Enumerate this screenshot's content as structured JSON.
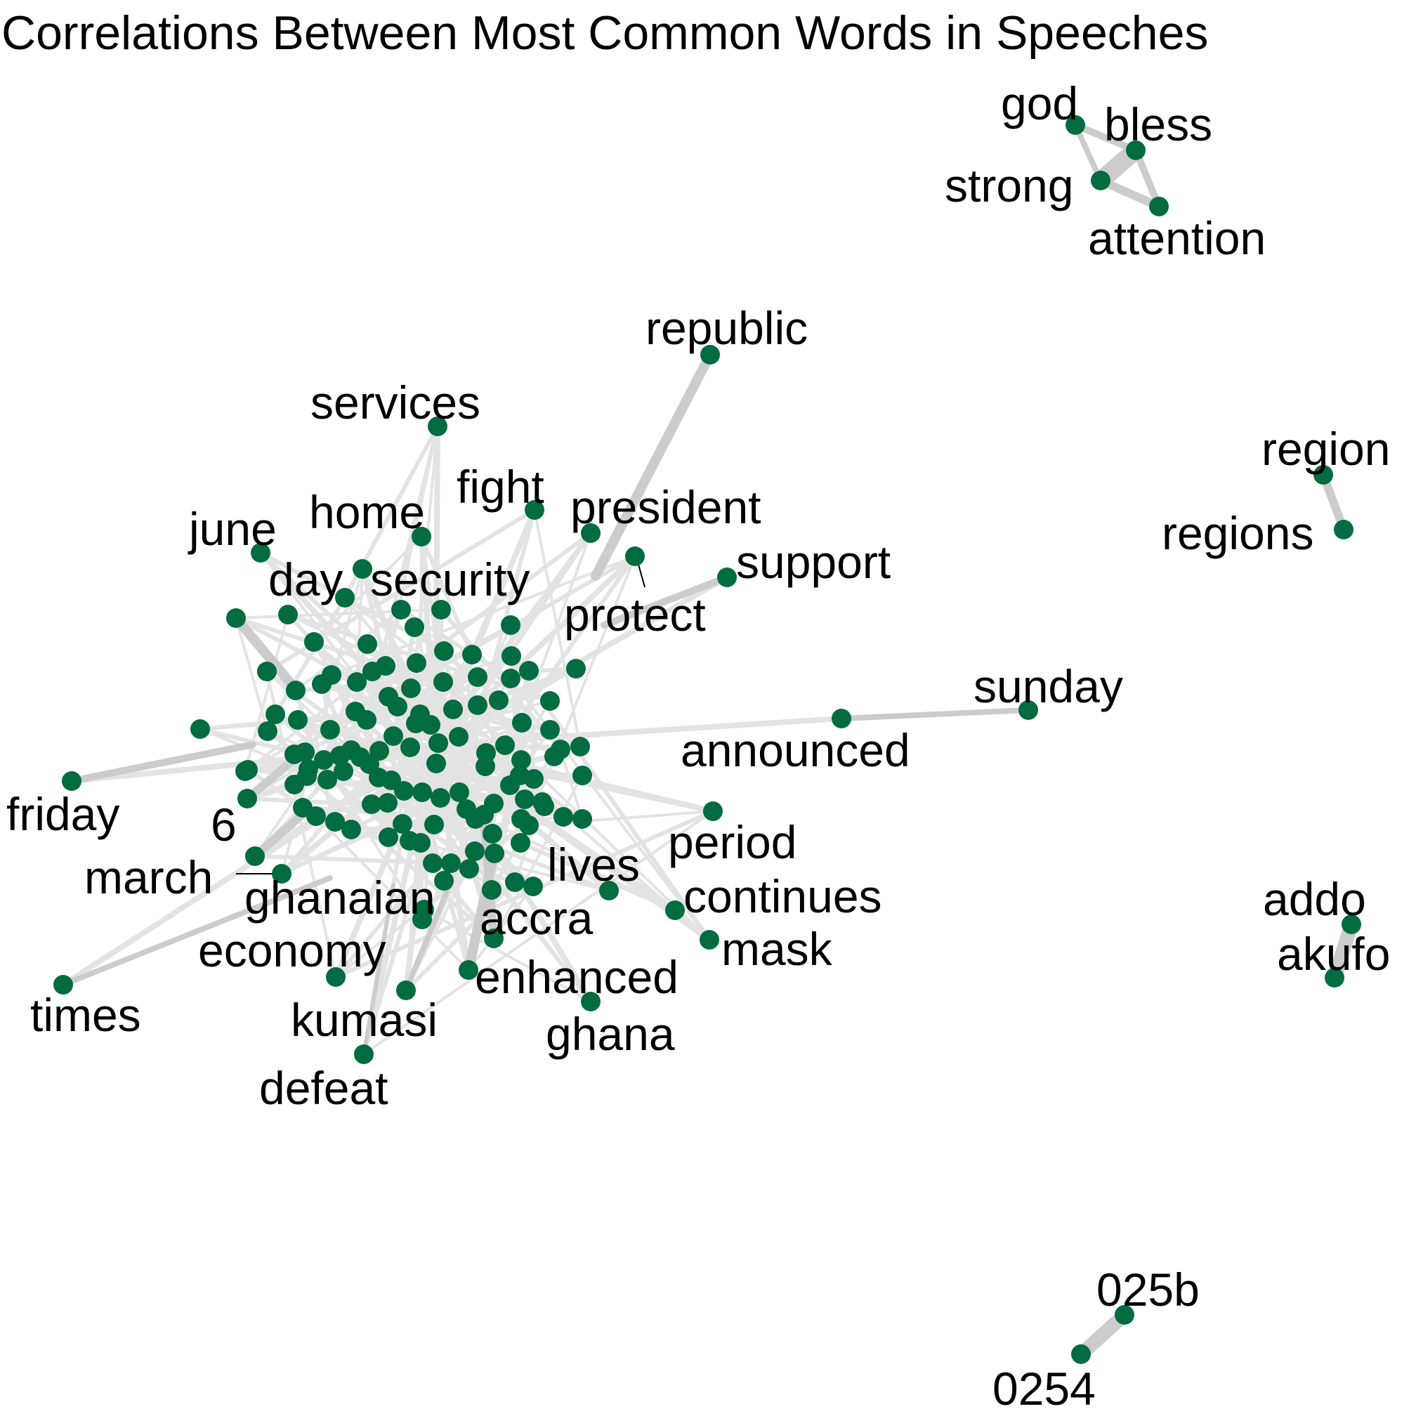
{
  "title": "Correlations Between Most Common Words in Speeches",
  "colors": {
    "node": "#006c3f",
    "edge": "#cccccc",
    "edge_light": "#e3e3e3",
    "label": "#000000"
  },
  "labels": [
    "god",
    "bless",
    "strong",
    "attention",
    "republic",
    "services",
    "fight",
    "home",
    "june",
    "president",
    "support",
    "day",
    "security",
    "protect",
    "region",
    "regions",
    "sunday",
    "announced",
    "friday",
    "6",
    "march",
    "ghanaian",
    "period",
    "lives",
    "continues",
    "accra",
    "mask",
    "economy",
    "enhanced",
    "times",
    "kumasi",
    "ghana",
    "defeat",
    "addo",
    "akufo",
    "025b",
    "0254"
  ]
}
